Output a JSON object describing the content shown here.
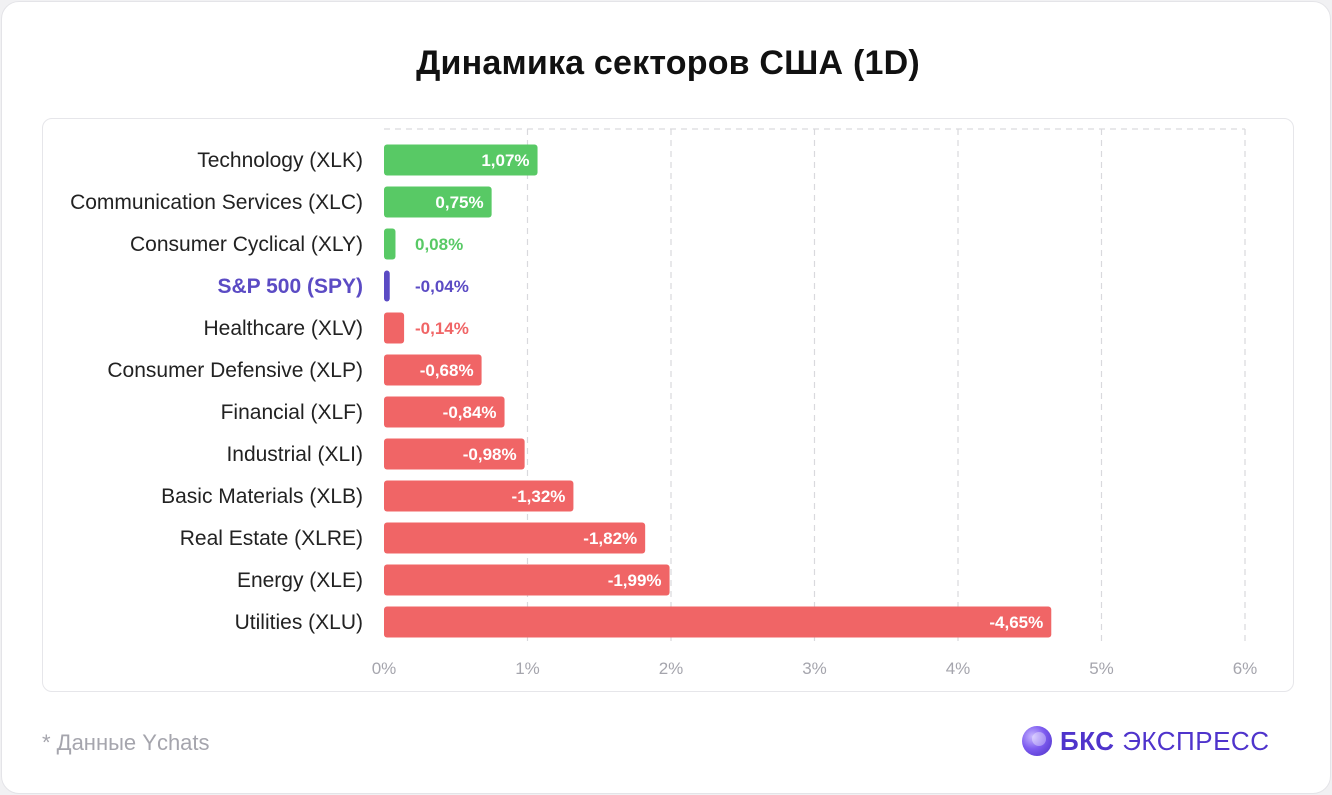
{
  "title": "Динамика секторов США (1D)",
  "footnote": "* Данные Ychats",
  "brand": {
    "strong": "БКС",
    "light": "ЭКСПРЕСС",
    "logo_icon": "bks-sphere-icon",
    "color": "#4f34cc"
  },
  "colors": {
    "positive": "#58c965",
    "negative": "#f06566",
    "benchmark": "#5b4bc4",
    "label": "#222222",
    "grid": "#d9d9dd",
    "tick": "#a5a5ad"
  },
  "chart_data": {
    "type": "bar",
    "orientation": "horizontal",
    "categories": [
      "Technology (XLK)",
      "Communication Services (XLC)",
      "Consumer Cyclical (XLY)",
      "S&P 500 (SPY)",
      "Healthcare (XLV)",
      "Consumer Defensive (XLP)",
      "Financial (XLF)",
      "Industrial (XLI)",
      "Basic Materials (XLB)",
      "Real Estate (XLRE)",
      "Energy (XLE)",
      "Utilities (XLU)"
    ],
    "values": [
      1.07,
      0.75,
      0.08,
      -0.04,
      -0.14,
      -0.68,
      -0.84,
      -0.98,
      -1.32,
      -1.82,
      -1.99,
      -4.65
    ],
    "data_labels": [
      "1,07%",
      "0,75%",
      "0,08%",
      "-0,04%",
      "-0,14%",
      "-0,68%",
      "-0,84%",
      "-0,98%",
      "-1,32%",
      "-1,82%",
      "-1,99%",
      "-4,65%"
    ],
    "highlight": "S&P 500 (SPY)",
    "bar_length": "absolute value",
    "xlim": [
      0,
      6
    ],
    "xticks": [
      "0%",
      "1%",
      "2%",
      "3%",
      "4%",
      "5%",
      "6%"
    ],
    "grid": "vertical dashed",
    "xlabel": "",
    "ylabel": ""
  }
}
